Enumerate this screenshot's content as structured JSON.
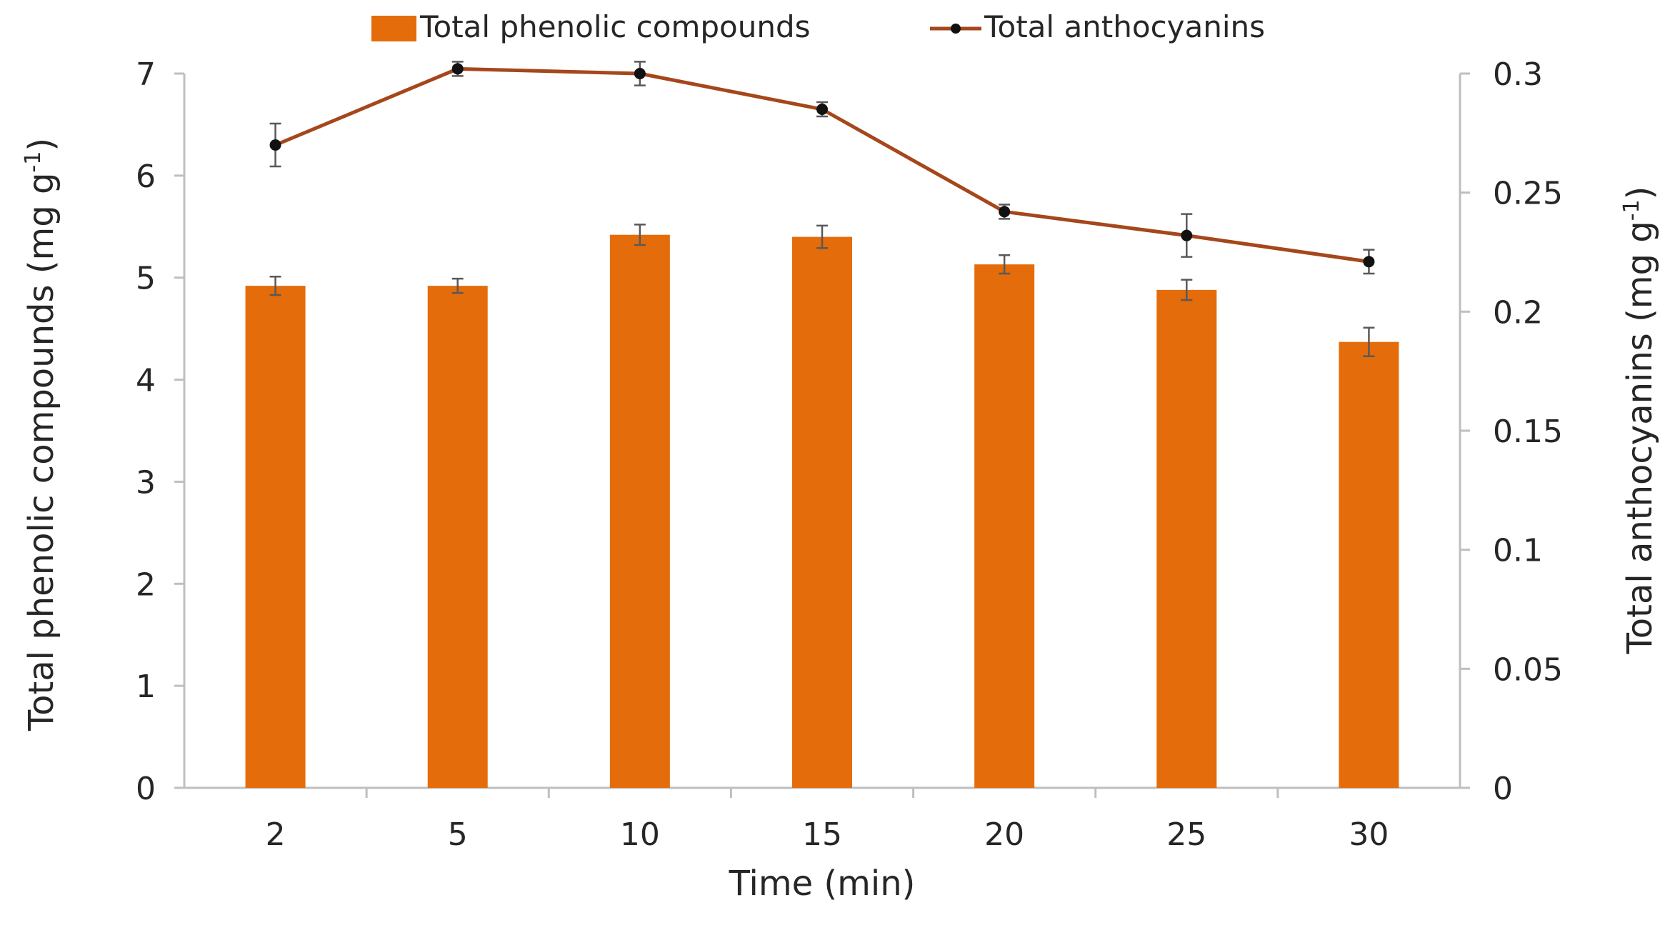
{
  "chart_data": {
    "type": "bar+line",
    "categories": [
      "2",
      "5",
      "10",
      "15",
      "20",
      "25",
      "30"
    ],
    "series": [
      {
        "name": "Total phenolic compounds",
        "kind": "bar",
        "axis": "left",
        "values": [
          4.92,
          4.92,
          5.42,
          5.4,
          5.13,
          4.88,
          4.37
        ],
        "errors": [
          0.09,
          0.07,
          0.1,
          0.11,
          0.09,
          0.1,
          0.14
        ],
        "color": "#E46C0A"
      },
      {
        "name": "Total anthocyanins",
        "kind": "line",
        "axis": "right",
        "values": [
          0.27,
          0.302,
          0.3,
          0.285,
          0.242,
          0.232,
          0.221
        ],
        "errors": [
          0.009,
          0.003,
          0.005,
          0.003,
          0.003,
          0.009,
          0.005
        ],
        "color": "#A5471B",
        "marker_color": "#111111"
      }
    ],
    "xlabel": "Time (min)",
    "ylabel_left": "Total phenolic compounds (mg g",
    "ylabel_right": "Total anthocyanins (mg g",
    "ylabel_superscript": "-1",
    "ylabel_close": ")",
    "ylim_left": [
      0,
      7
    ],
    "ylim_right": [
      0,
      0.3
    ],
    "yticks_left": [
      "0",
      "1",
      "2",
      "3",
      "4",
      "5",
      "6",
      "7"
    ],
    "yticks_right": [
      "0",
      "0.05",
      "0.1",
      "0.15",
      "0.2",
      "0.25",
      "0.3"
    ],
    "legend_position": "top-center",
    "grid": false
  }
}
